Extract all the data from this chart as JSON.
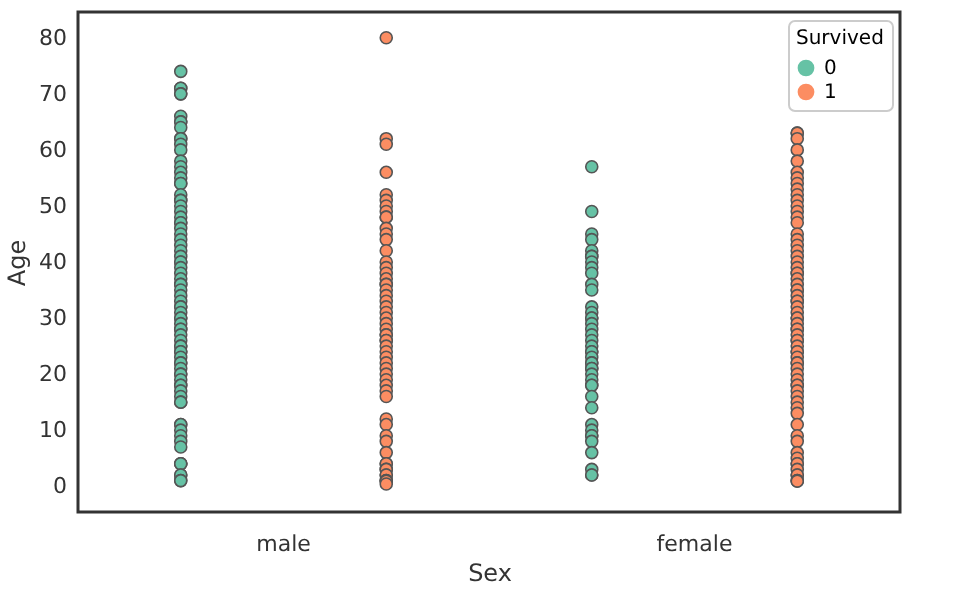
{
  "chart_data": {
    "type": "scatter",
    "xlabel": "Sex",
    "ylabel": "Age",
    "legend_title": "Survived",
    "legend": "top right",
    "grid": false,
    "marker": "circle",
    "categories": [
      "male",
      "female"
    ],
    "ylim": [
      -4.6,
      84.6
    ],
    "yticks": [
      0,
      10,
      20,
      30,
      40,
      50,
      60,
      70,
      80
    ],
    "series": [
      {
        "name": "0",
        "color": "#66c2a5",
        "x": [
          "male",
          "male",
          "male",
          "male",
          "male",
          "male",
          "male",
          "male",
          "male",
          "male",
          "male",
          "male",
          "male",
          "male",
          "male",
          "male",
          "male",
          "male",
          "male",
          "male",
          "male",
          "male",
          "male",
          "male",
          "male",
          "male",
          "male",
          "male",
          "male",
          "male",
          "male",
          "male",
          "male",
          "male",
          "male",
          "male",
          "male",
          "male",
          "male",
          "male",
          "male",
          "male",
          "male",
          "male",
          "male",
          "male",
          "male",
          "male",
          "male",
          "male",
          "male",
          "male",
          "male",
          "male",
          "male",
          "male",
          "male",
          "male",
          "male",
          "male",
          "male",
          "male",
          "male",
          "male",
          "male",
          "male",
          "male",
          "male",
          "male",
          "male",
          "male",
          "male",
          "male",
          "male",
          "male",
          "male",
          "male",
          "male",
          "male",
          "male",
          "male",
          "male",
          "male",
          "female",
          "female",
          "female",
          "female",
          "female",
          "female",
          "female",
          "female",
          "female",
          "female",
          "female",
          "female",
          "female",
          "female",
          "female",
          "female",
          "female",
          "female",
          "female",
          "female",
          "female",
          "female",
          "female",
          "female",
          "female",
          "female",
          "female",
          "female",
          "female",
          "female",
          "female",
          "female",
          "female",
          "female",
          "female",
          "female",
          "female",
          "female",
          "female",
          "female",
          "female",
          "female",
          "female"
        ],
        "values": [
          74,
          71,
          71,
          70,
          70,
          66,
          65,
          65,
          64,
          62,
          62,
          61,
          60,
          58,
          57,
          56,
          55,
          54,
          54,
          52,
          51,
          51,
          50,
          49,
          48,
          47,
          47,
          46,
          45,
          44,
          43,
          42,
          41,
          40,
          40,
          39,
          38,
          37,
          36,
          36,
          35,
          34,
          33,
          32,
          32,
          31,
          30,
          30,
          29,
          28,
          28,
          27,
          26,
          25,
          25,
          24,
          24,
          23,
          22,
          22,
          21,
          20,
          20,
          19,
          18,
          18,
          17,
          16,
          15,
          15,
          11,
          11,
          10,
          9,
          8,
          7,
          4,
          4,
          4,
          2,
          2,
          1,
          1,
          57,
          49,
          45,
          44,
          42,
          41,
          41,
          40,
          39,
          38,
          36,
          35,
          32,
          31,
          30,
          30,
          29,
          28,
          27,
          26,
          25,
          24,
          24,
          23,
          22,
          22,
          21,
          21,
          20,
          19,
          18,
          18,
          16,
          14,
          11,
          10,
          9,
          9,
          8,
          6,
          3,
          2,
          2
        ]
      },
      {
        "name": "1",
        "color": "#fc8d62",
        "x": [
          "male",
          "male",
          "male",
          "male",
          "male",
          "male",
          "male",
          "male",
          "male",
          "male",
          "male",
          "male",
          "male",
          "male",
          "male",
          "male",
          "male",
          "male",
          "male",
          "male",
          "male",
          "male",
          "male",
          "male",
          "male",
          "male",
          "male",
          "male",
          "male",
          "male",
          "male",
          "male",
          "male",
          "male",
          "male",
          "male",
          "male",
          "male",
          "male",
          "male",
          "male",
          "male",
          "male",
          "male",
          "male",
          "male",
          "male",
          "male",
          "male",
          "male",
          "male",
          "male",
          "male",
          "male",
          "male",
          "male",
          "male",
          "female",
          "female",
          "female",
          "female",
          "female",
          "female",
          "female",
          "female",
          "female",
          "female",
          "female",
          "female",
          "female",
          "female",
          "female",
          "female",
          "female",
          "female",
          "female",
          "female",
          "female",
          "female",
          "female",
          "female",
          "female",
          "female",
          "female",
          "female",
          "female",
          "female",
          "female",
          "female",
          "female",
          "female",
          "female",
          "female",
          "female",
          "female",
          "female",
          "female",
          "female",
          "female",
          "female",
          "female",
          "female",
          "female",
          "female",
          "female",
          "female",
          "female",
          "female",
          "female",
          "female",
          "female",
          "female",
          "female",
          "female",
          "female",
          "female",
          "female",
          "female",
          "female",
          "female",
          "female",
          "female",
          "female",
          "female",
          "female",
          "female",
          "female"
        ],
        "values": [
          80,
          62,
          61,
          56,
          52,
          51,
          50,
          49,
          48,
          48,
          46,
          45,
          44,
          42,
          40,
          39,
          38,
          37,
          36,
          36,
          35,
          34,
          33,
          32,
          31,
          30,
          29,
          28,
          27,
          27,
          26,
          26,
          25,
          24,
          23,
          22,
          21,
          20,
          19,
          18,
          17,
          16,
          12,
          11,
          9,
          8,
          6,
          4,
          4,
          3,
          3,
          2,
          2,
          1,
          1,
          0.9,
          0.4,
          63,
          63,
          62,
          60,
          58,
          56,
          55,
          54,
          53,
          52,
          51,
          50,
          49,
          48,
          47,
          45,
          44,
          43,
          42,
          41,
          40,
          39,
          38,
          38,
          37,
          36,
          35,
          35,
          34,
          33,
          33,
          32,
          31,
          30,
          30,
          29,
          28,
          28,
          27,
          26,
          26,
          25,
          24,
          24,
          23,
          22,
          22,
          21,
          20,
          19,
          18,
          18,
          17,
          16,
          15,
          14,
          13,
          11,
          9,
          8,
          6,
          5,
          4,
          4,
          3,
          2,
          2,
          1,
          1,
          0.9
        ]
      }
    ]
  }
}
